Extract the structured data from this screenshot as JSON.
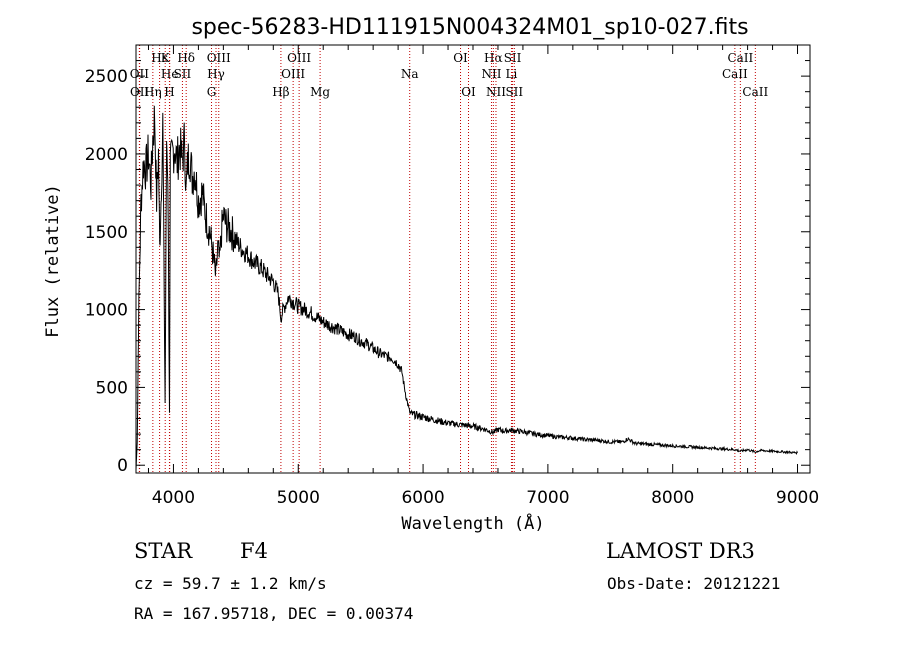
{
  "chart_data": {
    "type": "line",
    "title": "spec-56283-HD111915N004324M01_sp10-027.fits",
    "xlabel": "Wavelength (Å)",
    "ylabel": "Flux (relative)",
    "xlim": [
      3700,
      9100
    ],
    "ylim": [
      -50,
      2700
    ],
    "xticks": [
      4000,
      5000,
      6000,
      7000,
      8000,
      9000
    ],
    "yticks": [
      0,
      500,
      1000,
      1500,
      2000,
      2500
    ],
    "grid": false,
    "series": [
      {
        "name": "flux",
        "x": [
          3700,
          3710,
          3720,
          3730,
          3740,
          3760,
          3780,
          3800,
          3820,
          3835,
          3850,
          3865,
          3880,
          3890,
          3900,
          3915,
          3933,
          3945,
          3955,
          3968,
          3975,
          3990,
          4010,
          4030,
          4050,
          4070,
          4090,
          4101,
          4115,
          4130,
          4150,
          4170,
          4200,
          4230,
          4260,
          4290,
          4310,
          4325,
          4340,
          4355,
          4370,
          4385,
          4400,
          4420,
          4450,
          4480,
          4520,
          4560,
          4600,
          4650,
          4700,
          4750,
          4800,
          4840,
          4861,
          4880,
          4920,
          4960,
          5000,
          5050,
          5100,
          5150,
          5200,
          5250,
          5300,
          5350,
          5400,
          5450,
          5500,
          5550,
          5600,
          5650,
          5700,
          5750,
          5800,
          5830,
          5850,
          5870,
          5890,
          5900,
          5950,
          6000,
          6050,
          6100,
          6150,
          6200,
          6250,
          6300,
          6350,
          6400,
          6450,
          6500,
          6563,
          6600,
          6650,
          6700,
          6750,
          6800,
          6900,
          7000,
          7100,
          7200,
          7300,
          7400,
          7500,
          7600,
          7640,
          7700,
          7800,
          7900,
          8000,
          8100,
          8200,
          8300,
          8400,
          8500,
          8542,
          8600,
          8662,
          8700,
          8800,
          8900,
          9000
        ],
        "values": [
          -30,
          150,
          900,
          1300,
          1700,
          1950,
          1900,
          2000,
          1800,
          2100,
          2250,
          1700,
          2000,
          1400,
          1700,
          2200,
          400,
          2100,
          1900,
          350,
          1900,
          2000,
          2050,
          1950,
          2050,
          1950,
          2100,
          1750,
          1950,
          2000,
          1850,
          1900,
          1700,
          1750,
          1600,
          1500,
          1400,
          1300,
          1200,
          1400,
          1300,
          1500,
          1600,
          1550,
          1520,
          1480,
          1420,
          1380,
          1350,
          1300,
          1270,
          1220,
          1180,
          1100,
          950,
          1000,
          1080,
          1050,
          1020,
          1000,
          980,
          950,
          920,
          900,
          880,
          860,
          840,
          830,
          800,
          780,
          750,
          720,
          700,
          690,
          650,
          600,
          500,
          420,
          350,
          330,
          320,
          310,
          300,
          290,
          280,
          270,
          265,
          260,
          255,
          250,
          240,
          230,
          210,
          230,
          220,
          225,
          220,
          215,
          200,
          190,
          180,
          175,
          165,
          160,
          150,
          150,
          170,
          140,
          135,
          130,
          125,
          120,
          115,
          110,
          105,
          100,
          90,
          100,
          85,
          95,
          90,
          85,
          80
        ]
      }
    ],
    "lines": [
      {
        "label": "Hε",
        "x": 3889
      },
      {
        "label": "K",
        "x": 3934
      },
      {
        "label": "Hδ",
        "x": 4102
      },
      {
        "label": "OIII",
        "x": 4363
      },
      {
        "label": "OII",
        "x": 3727
      },
      {
        "label": "He",
        "x": 3970
      },
      {
        "label": "SII",
        "x": 4072
      },
      {
        "label": "Hγ",
        "x": 4341
      },
      {
        "label": "OIII",
        "x": 4959
      },
      {
        "label": "OII",
        "x": 3729
      },
      {
        "label": "Hη",
        "x": 3835
      },
      {
        "label": "H",
        "x": 3968
      },
      {
        "label": "G",
        "x": 4305
      },
      {
        "label": "Hβ",
        "x": 4861
      },
      {
        "label": "OIII",
        "x": 5007
      },
      {
        "label": "Mg",
        "x": 5175
      },
      {
        "label": "Na",
        "x": 5893
      },
      {
        "label": "OI",
        "x": 6300
      },
      {
        "label": "OI",
        "x": 6364
      },
      {
        "label": "Hα",
        "x": 6563
      },
      {
        "label": "NII",
        "x": 6548
      },
      {
        "label": "NII",
        "x": 6584
      },
      {
        "label": "SII",
        "x": 6717
      },
      {
        "label": "Li",
        "x": 6708
      },
      {
        "label": "SII",
        "x": 6731
      },
      {
        "label": "CaII",
        "x": 8542
      },
      {
        "label": "CaII",
        "x": 8498
      },
      {
        "label": "CaII",
        "x": 8662
      }
    ]
  },
  "info": {
    "class_label": "STAR",
    "subclass": "F4",
    "survey": "LAMOST DR3",
    "cz": "cz = 59.7 ± 1.2 km/s",
    "obs_date": "Obs-Date: 20121221",
    "coords": "RA = 167.95718, DEC =    0.00374"
  }
}
